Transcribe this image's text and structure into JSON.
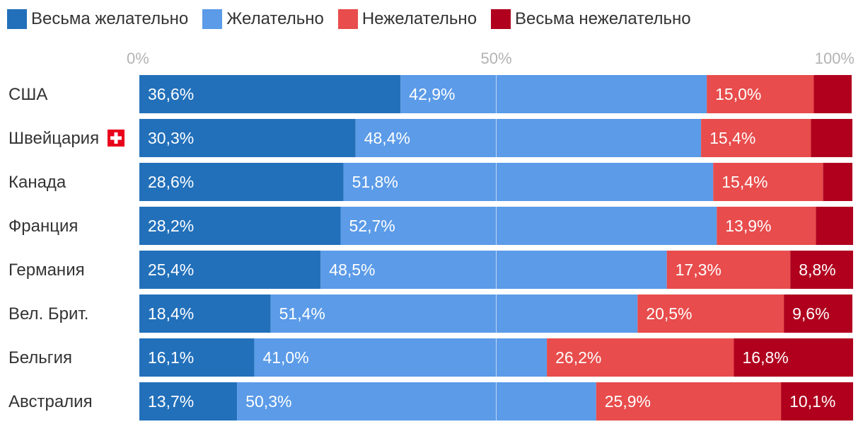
{
  "chart_data": {
    "type": "bar",
    "orientation": "horizontal",
    "stacked": true,
    "xlim": [
      0,
      100
    ],
    "ticks": [
      "0%",
      "50%",
      "100%"
    ],
    "tick_values": [
      0,
      50,
      100
    ],
    "legend_position": "top-left",
    "grid": true,
    "categories": [
      "США",
      "Швейцария",
      "Канада",
      "Франция",
      "Германия",
      "Вел. Брит.",
      "Бельгия",
      "Австралия"
    ],
    "flag_icons": {
      "Швейцария": "swiss-flag-icon"
    },
    "series": [
      {
        "name": "Весьма желательно",
        "color": "#2270ba",
        "values": [
          36.6,
          30.3,
          28.6,
          28.2,
          25.4,
          18.4,
          16.1,
          13.7
        ],
        "labels": [
          "36,6%",
          "30,3%",
          "28,6%",
          "28,2%",
          "25,4%",
          "18,4%",
          "16,1%",
          "13,7%"
        ]
      },
      {
        "name": "Желательно",
        "color": "#5b9be8",
        "values": [
          42.9,
          48.4,
          51.8,
          52.7,
          48.5,
          51.4,
          41.0,
          50.3
        ],
        "labels": [
          "42,9%",
          "48,4%",
          "51,8%",
          "52,7%",
          "48,5%",
          "51,4%",
          "41,0%",
          "50,3%"
        ]
      },
      {
        "name": "Нежелательно",
        "color": "#e84c4c",
        "values": [
          15.0,
          15.4,
          15.4,
          13.9,
          17.3,
          20.5,
          26.2,
          25.9
        ],
        "labels": [
          "15,0%",
          "15,4%",
          "15,4%",
          "13,9%",
          "17,3%",
          "20,5%",
          "26,2%",
          "25,9%"
        ]
      },
      {
        "name": "Весьма нежелательно",
        "color": "#b0001e",
        "values": [
          5.3,
          5.8,
          4.1,
          5.2,
          8.8,
          9.6,
          16.8,
          10.1
        ],
        "labels": [
          "",
          "",
          "",
          "",
          "8,8%",
          "9,6%",
          "16,8%",
          "10,1%"
        ]
      }
    ]
  }
}
